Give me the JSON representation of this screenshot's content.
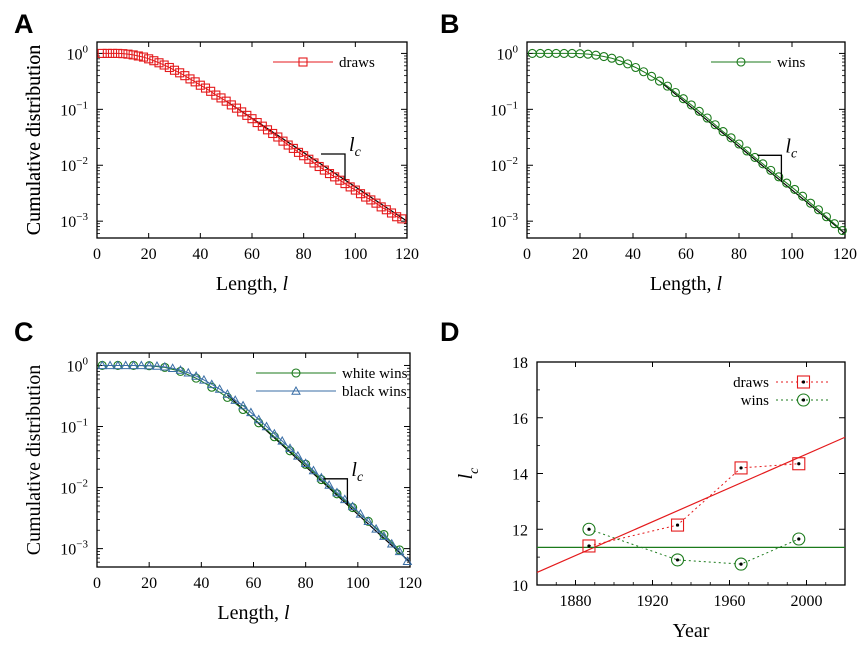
{
  "chart_data": [
    {
      "panel": "A",
      "type": "line",
      "xlabel": "Length, ",
      "xlabel_var": "l",
      "ylabel": "Cumulative distribution",
      "xlim": [
        0,
        120
      ],
      "ylim": [
        0.0005,
        1.6
      ],
      "yscale": "log",
      "xticks": [
        0,
        20,
        40,
        60,
        80,
        100,
        120
      ],
      "yticks": [
        {
          "base": "10",
          "exp": "0",
          "value": 1
        },
        {
          "base": "10",
          "exp": "−1",
          "value": 0.1
        },
        {
          "base": "10",
          "exp": "−2",
          "value": 0.01
        },
        {
          "base": "10",
          "exp": "−3",
          "value": 0.001
        }
      ],
      "legend_position": "top-right",
      "marker_label": {
        "base": "l",
        "sub": "c",
        "x": 96
      },
      "series": [
        {
          "name": "draws",
          "color": "#e41a1c",
          "marker": "square",
          "x": [
            2,
            4,
            6,
            8,
            10,
            12,
            14,
            16,
            18,
            20,
            22,
            24,
            26,
            28,
            30,
            32,
            34,
            36,
            38,
            40,
            42,
            44,
            46,
            48,
            50,
            52,
            54,
            56,
            58,
            60,
            62,
            64,
            66,
            68,
            70,
            72,
            74,
            76,
            78,
            80,
            82,
            84,
            86,
            88,
            90,
            92,
            94,
            96,
            98,
            100,
            102,
            104,
            106,
            108,
            110,
            112,
            114,
            116,
            118
          ],
          "y": [
            1,
            1,
            1,
            1,
            0.99,
            0.97,
            0.94,
            0.9,
            0.86,
            0.8,
            0.74,
            0.68,
            0.62,
            0.56,
            0.5,
            0.45,
            0.4,
            0.35,
            0.31,
            0.27,
            0.24,
            0.21,
            0.18,
            0.16,
            0.14,
            0.12,
            0.105,
            0.09,
            0.078,
            0.068,
            0.058,
            0.05,
            0.043,
            0.037,
            0.032,
            0.027,
            0.023,
            0.02,
            0.017,
            0.0148,
            0.0128,
            0.011,
            0.0095,
            0.0082,
            0.0071,
            0.0062,
            0.0054,
            0.0047,
            0.0041,
            0.0036,
            0.0031,
            0.0027,
            0.0024,
            0.0021,
            0.0018,
            0.0016,
            0.0014,
            0.0012,
            0.0011
          ]
        }
      ],
      "fit": {
        "x": [
          50,
          120
        ],
        "y": [
          0.14,
          0.001
        ]
      }
    },
    {
      "panel": "B",
      "type": "line",
      "xlabel": "Length, ",
      "xlabel_var": "l",
      "ylabel": "Cumulative distribution",
      "xlim": [
        0,
        120
      ],
      "ylim": [
        0.0005,
        1.6
      ],
      "yscale": "log",
      "xticks": [
        0,
        20,
        40,
        60,
        80,
        100,
        120
      ],
      "yticks": [
        {
          "base": "10",
          "exp": "0",
          "value": 1
        },
        {
          "base": "10",
          "exp": "−1",
          "value": 0.1
        },
        {
          "base": "10",
          "exp": "−2",
          "value": 0.01
        },
        {
          "base": "10",
          "exp": "−3",
          "value": 0.001
        }
      ],
      "legend_position": "top-right",
      "marker_label": {
        "base": "l",
        "sub": "c",
        "x": 96
      },
      "series": [
        {
          "name": "wins",
          "color": "#1b7a1b",
          "marker": "circle",
          "x": [
            2,
            5,
            8,
            11,
            14,
            17,
            20,
            23,
            26,
            29,
            32,
            35,
            38,
            41,
            44,
            47,
            50,
            53,
            56,
            59,
            62,
            65,
            68,
            71,
            74,
            77,
            80,
            83,
            86,
            89,
            92,
            95,
            98,
            101,
            104,
            107,
            110,
            113,
            116,
            119
          ],
          "y": [
            1,
            1,
            1,
            1,
            1,
            1,
            0.99,
            0.97,
            0.93,
            0.88,
            0.82,
            0.74,
            0.65,
            0.56,
            0.47,
            0.39,
            0.32,
            0.26,
            0.2,
            0.155,
            0.12,
            0.092,
            0.07,
            0.053,
            0.04,
            0.031,
            0.024,
            0.018,
            0.0138,
            0.0106,
            0.0081,
            0.0062,
            0.0048,
            0.0037,
            0.0028,
            0.0021,
            0.0016,
            0.0012,
            0.0009,
            0.00068
          ]
        }
      ],
      "fit": {
        "x": [
          50,
          120
        ],
        "y": [
          0.32,
          0.0006
        ]
      }
    },
    {
      "panel": "C",
      "type": "line",
      "xlabel": "Length, ",
      "xlabel_var": "l",
      "ylabel": "Cumulative distribution",
      "xlim": [
        0,
        120
      ],
      "ylim": [
        0.0005,
        1.6
      ],
      "yscale": "log",
      "xticks": [
        0,
        20,
        40,
        60,
        80,
        100,
        120
      ],
      "yticks": [
        {
          "base": "10",
          "exp": "0",
          "value": 1
        },
        {
          "base": "10",
          "exp": "−1",
          "value": 0.1
        },
        {
          "base": "10",
          "exp": "−2",
          "value": 0.01
        },
        {
          "base": "10",
          "exp": "−3",
          "value": 0.001
        }
      ],
      "legend_position": "top-right",
      "marker_label": {
        "base": "l",
        "sub": "c",
        "x": 96
      },
      "series": [
        {
          "name": "white wins",
          "color": "#1b7a1b",
          "marker": "circle",
          "x": [
            2,
            8,
            14,
            20,
            26,
            32,
            38,
            44,
            50,
            56,
            62,
            68,
            74,
            80,
            86,
            92,
            98,
            104,
            110,
            116
          ],
          "y": [
            1,
            1,
            1,
            0.99,
            0.93,
            0.8,
            0.62,
            0.44,
            0.3,
            0.19,
            0.115,
            0.068,
            0.04,
            0.024,
            0.0135,
            0.0079,
            0.0047,
            0.0028,
            0.0017,
            0.00095
          ]
        },
        {
          "name": "black wins",
          "color": "#3a6ea5",
          "marker": "triangle",
          "x": [
            2,
            5,
            8,
            11,
            14,
            17,
            20,
            23,
            26,
            29,
            32,
            35,
            38,
            41,
            44,
            47,
            50,
            53,
            56,
            59,
            62,
            65,
            68,
            71,
            74,
            77,
            80,
            83,
            86,
            89,
            92,
            95,
            98,
            101,
            104,
            107,
            110,
            113,
            116,
            119
          ],
          "y": [
            1,
            1,
            1,
            1,
            1,
            1,
            0.99,
            0.98,
            0.95,
            0.9,
            0.84,
            0.76,
            0.67,
            0.58,
            0.49,
            0.41,
            0.34,
            0.27,
            0.22,
            0.17,
            0.13,
            0.1,
            0.076,
            0.058,
            0.044,
            0.033,
            0.025,
            0.019,
            0.0145,
            0.011,
            0.0083,
            0.0064,
            0.0049,
            0.0037,
            0.0028,
            0.0021,
            0.0016,
            0.0012,
            0.0009,
            0.00062
          ]
        }
      ],
      "fit": {
        "x": [
          50,
          120
        ],
        "y": [
          0.33,
          0.0006
        ]
      }
    },
    {
      "panel": "D",
      "type": "line",
      "xlabel": "Year",
      "ylabel_base": "l",
      "ylabel_sub": "c",
      "xlim": [
        1860,
        2020
      ],
      "ylim": [
        10,
        18
      ],
      "xticks": [
        1880,
        1920,
        1960,
        2000
      ],
      "yticks": [
        10,
        12,
        14,
        16,
        18
      ],
      "legend_position": "top-right",
      "series": [
        {
          "name": "draws",
          "color": "#e41a1c",
          "marker": "square",
          "x": [
            1887,
            1933,
            1966,
            1996
          ],
          "y": [
            11.4,
            12.15,
            14.2,
            14.35
          ]
        },
        {
          "name": "wins",
          "color": "#1b7a1b",
          "marker": "circle",
          "x": [
            1887,
            1933,
            1966,
            1996
          ],
          "y": [
            12.0,
            10.9,
            10.75,
            11.65
          ]
        }
      ],
      "trend_draws": {
        "x": [
          1860,
          2020
        ],
        "y": [
          10.45,
          15.3
        ]
      },
      "trend_wins": {
        "x": [
          1860,
          2020
        ],
        "y": [
          11.35,
          11.35
        ]
      }
    }
  ]
}
